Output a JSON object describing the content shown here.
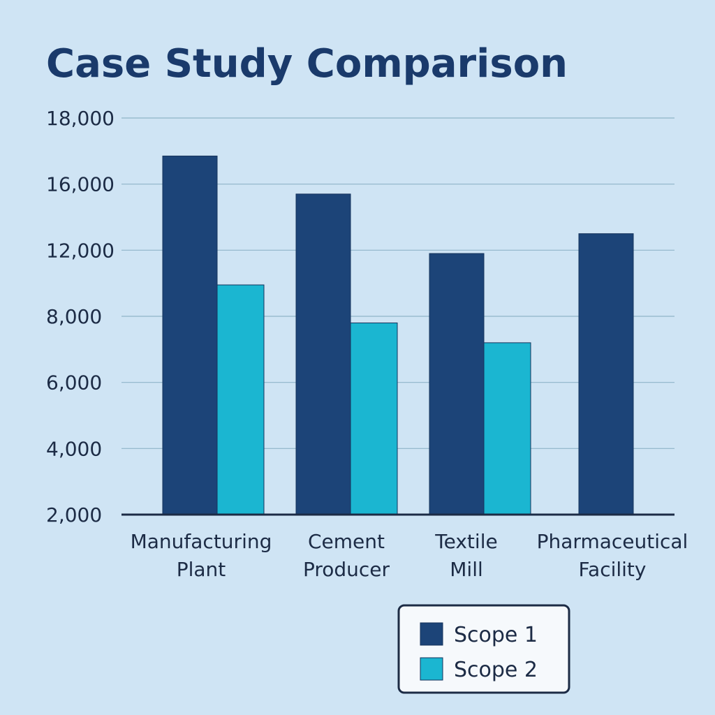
{
  "chart_data": {
    "type": "bar",
    "title": "Case Study Comparison",
    "xlabel": "",
    "ylabel": "",
    "categories": [
      [
        "Manufacturing",
        "Plant"
      ],
      [
        "Cement",
        "Producer"
      ],
      [
        "Textile",
        "Mill"
      ],
      [
        "Pharmaceutical",
        "Facility"
      ]
    ],
    "yticks": [
      2000,
      4000,
      6000,
      8000,
      12000,
      16000,
      18000
    ],
    "ytick_labels": [
      "2,000",
      "4,000",
      "6,000",
      "8,000",
      "12,000",
      "16,000",
      "18,000"
    ],
    "series": [
      {
        "name": "Scope 1",
        "color": "#1c4478",
        "values": [
          16850,
          15400,
          11800,
          13000
        ]
      },
      {
        "name": "Scope 2",
        "color": "#1bb6d1",
        "values": [
          9900,
          7800,
          7200,
          null
        ]
      }
    ],
    "legend_position": "bottom-right",
    "grid": true
  }
}
